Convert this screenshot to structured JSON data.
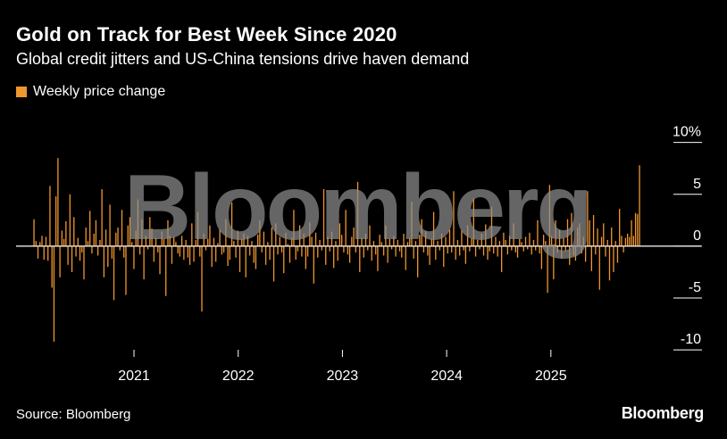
{
  "title": "Gold on Track for Best Week Since 2020",
  "subtitle": "Global credit jitters and US-China tensions drive haven demand",
  "source": "Source: Bloomberg",
  "brand": "Bloomberg",
  "watermark": "Bloomberg",
  "colors": {
    "background": "#000000",
    "bar": "#f0962e",
    "zero_line": "#ffffff",
    "ticks": "#ffffff",
    "watermark": "#8c8c8c"
  },
  "chart_data": {
    "type": "bar",
    "title": "Gold on Track for Best Week Since 2020",
    "legend": [
      "Weekly price change"
    ],
    "legend_position": "top-left",
    "y_axis_position": "right",
    "grid": false,
    "ylim": [
      -10.5,
      11.0
    ],
    "y_ticks": [
      10,
      5,
      0,
      -5,
      -10
    ],
    "y_tick_labels": [
      "10%",
      "5",
      "0",
      "-5",
      "-10"
    ],
    "x_ticks": [
      2021,
      2022,
      2023,
      2024,
      2025
    ],
    "x_tick_labels": [
      "2021",
      "2022",
      "2023",
      "2024",
      "2025"
    ],
    "x_range_years": [
      2020.04,
      2025.85
    ],
    "series": [
      {
        "name": "Weekly price change",
        "values": [
          2.6,
          0.5,
          -1.2,
          0.4,
          1.0,
          -1.3,
          0.9,
          -1.4,
          5.8,
          -4.0,
          -9.2,
          4.8,
          8.5,
          -3.0,
          1.5,
          0.7,
          2.4,
          -1.8,
          5.0,
          -2.5,
          2.8,
          -1.0,
          0.8,
          -1.4,
          -0.6,
          -3.2,
          1.8,
          0.5,
          3.4,
          -0.7,
          1.2,
          2.5,
          -0.9,
          0.6,
          5.5,
          -3.0,
          1.6,
          -2.0,
          4.0,
          -1.2,
          -5.2,
          1.3,
          1.8,
          -0.4,
          3.5,
          -1.1,
          -4.7,
          2.0,
          2.8,
          0.4,
          -2.2,
          1.5,
          4.5,
          -0.8,
          2.6,
          -3.2,
          1.0,
          -0.3,
          2.8,
          1.7,
          -1.5,
          0.8,
          -0.6,
          -2.7,
          1.4,
          0.7,
          -4.8,
          2.5,
          1.0,
          -1.7,
          0.9,
          0.4,
          -0.7,
          -1.0,
          1.0,
          -1.3,
          0.6,
          -1.1,
          -1.8,
          2.2,
          -1.5,
          0.6,
          3.3,
          -1.0,
          -6.3,
          1.2,
          -0.4,
          0.7,
          2.0,
          -2.0,
          0.8,
          -1.5,
          0.3,
          1.6,
          -0.8,
          -0.6,
          2.6,
          -1.9,
          -1.3,
          4.2,
          0.5,
          -1.1,
          1.5,
          -2.5,
          0.7,
          1.2,
          -3.0,
          1.0,
          -0.9,
          0.5,
          -1.6,
          -2.2,
          1.1,
          2.5,
          -0.6,
          1.4,
          -1.8,
          0.4,
          -1.3,
          1.8,
          -3.4,
          2.2,
          -0.8,
          0.9,
          -0.6,
          -2.6,
          1.3,
          0.2,
          -1.6,
          0.8,
          3.5,
          -1.3,
          -0.5,
          2.0,
          -1.0,
          1.2,
          -2.2,
          -1.0,
          2.3,
          0.9,
          -3.6,
          1.3,
          -1.1,
          0.6,
          -0.4,
          5.5,
          -1.8,
          0.9,
          -0.5,
          1.4,
          -2.1,
          0.5,
          -1.4,
          2.2,
          1.1,
          -0.6,
          3.5,
          -0.8,
          -1.6,
          0.9,
          1.8,
          -0.6,
          6.2,
          -2.5,
          0.8,
          -1.1,
          1.2,
          -0.4,
          2.0,
          -1.4,
          0.5,
          -0.8,
          -2.4,
          1.1,
          0.4,
          -0.9,
          2.0,
          -1.6,
          0.7,
          -0.3,
          1.0,
          -1.0,
          0.6,
          -0.5,
          -1.1,
          1.2,
          -2.3,
          0.4,
          0.8,
          4.3,
          -1.2,
          0.5,
          -3.0,
          1.1,
          2.6,
          -0.6,
          1.5,
          -0.9,
          -1.8,
          0.7,
          3.3,
          -1.3,
          0.5,
          -0.4,
          1.2,
          -2.0,
          0.9,
          -0.7,
          1.6,
          -0.6,
          5.3,
          -1.3,
          0.6,
          -0.9,
          1.5,
          -0.4,
          -1.7,
          2.0,
          -0.5,
          0.8,
          4.6,
          -1.0,
          0.6,
          -0.3,
          1.2,
          -0.9,
          2.1,
          -1.3,
          -0.5,
          3.8,
          -0.7,
          0.9,
          -1.0,
          0.5,
          -2.5,
          1.3,
          0.6,
          -0.8,
          1.0,
          -0.4,
          2.2,
          -0.6,
          -1.1,
          0.7,
          0.4,
          -0.5,
          0.9,
          -0.3,
          1.3,
          -0.8,
          0.6,
          -0.4,
          2.5,
          -0.7,
          -2.2,
          1.1,
          0.5,
          -4.5,
          5.9,
          1.0,
          -3.2,
          2.5,
          -0.6,
          1.6,
          -1.2,
          0.8,
          -0.5,
          2.6,
          -1.8,
          3.2,
          -0.9,
          -1.4,
          1.8,
          2.2,
          -0.7,
          0.9,
          -1.5,
          5.3,
          2.5,
          -2.4,
          3.0,
          -0.8,
          1.7,
          -4.2,
          0.9,
          2.2,
          -1.0,
          0.6,
          -3.3,
          1.8,
          -2.5,
          0.5,
          -1.6,
          3.6,
          1.0,
          -0.6,
          0.8,
          1.2,
          0.9,
          2.5,
          1.0,
          3.2,
          3.1,
          7.8
        ]
      }
    ]
  }
}
